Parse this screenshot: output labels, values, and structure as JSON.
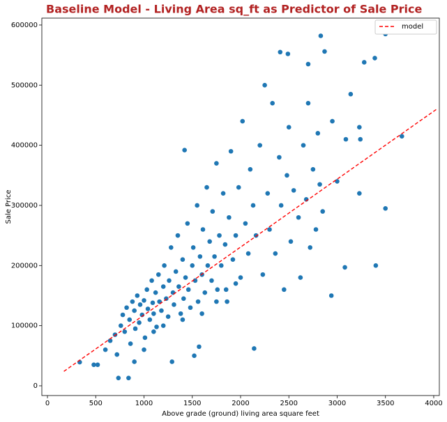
{
  "chart_data": {
    "type": "scatter",
    "title": "Baseline Model - Living Area sq_ft as Predictor of Sale Price",
    "x_label": "Above grade (ground) living area square feet",
    "y_label": "Sale Price",
    "color": "#1f77b4",
    "x": [
      600,
      650,
      700,
      720,
      760,
      780,
      800,
      820,
      850,
      860,
      880,
      900,
      910,
      930,
      950,
      960,
      980,
      1000,
      1010,
      1030,
      1040,
      1060,
      1080,
      1090,
      1100,
      1120,
      1130,
      1150,
      1160,
      1180,
      1200,
      1210,
      1230,
      1250,
      1260,
      1280,
      1300,
      1310,
      1330,
      1350,
      1360,
      1380,
      1400,
      1410,
      1430,
      1450,
      1460,
      1480,
      1500,
      1510,
      1530,
      1550,
      1560,
      1580,
      1600,
      1610,
      1630,
      1650,
      1660,
      1680,
      1700,
      1710,
      1730,
      1750,
      1760,
      1780,
      1800,
      1820,
      1840,
      1860,
      1880,
      1900,
      1920,
      1950,
      1980,
      2000,
      2020,
      2050,
      2080,
      2100,
      2130,
      2160,
      2200,
      2230,
      2250,
      2280,
      2300,
      2330,
      2360,
      2400,
      2420,
      2450,
      2480,
      2500,
      2520,
      2550,
      2600,
      2620,
      2650,
      2680,
      2700,
      2720,
      2750,
      2780,
      2800,
      2820,
      2850,
      1000,
      1100,
      900,
      1290,
      1520,
      1570,
      2140,
      1200,
      1400,
      1600,
      1750,
      1850,
      1950,
      334,
      480,
      520,
      735,
      840,
      1420,
      2830,
      2870,
      2410,
      2490,
      2700,
      3500,
      3390,
      3280,
      3140,
      3670,
      3500,
      3400,
      3080,
      2940,
      3230,
      3230,
      3240,
      2950,
      3090,
      3000
    ],
    "y": [
      60000,
      75000,
      85000,
      52000,
      100000,
      118000,
      90000,
      130000,
      110000,
      70000,
      140000,
      125000,
      95000,
      150000,
      105000,
      135000,
      118000,
      142000,
      80000,
      160000,
      128000,
      110000,
      175000,
      138000,
      120000,
      155000,
      98000,
      185000,
      140000,
      125000,
      165000,
      200000,
      145000,
      115000,
      175000,
      230000,
      155000,
      135000,
      190000,
      250000,
      165000,
      120000,
      210000,
      145000,
      180000,
      270000,
      160000,
      130000,
      200000,
      230000,
      175000,
      300000,
      140000,
      215000,
      185000,
      260000,
      155000,
      330000,
      200000,
      240000,
      175000,
      290000,
      215000,
      370000,
      160000,
      250000,
      200000,
      320000,
      235000,
      140000,
      280000,
      390000,
      210000,
      250000,
      330000,
      180000,
      440000,
      270000,
      220000,
      360000,
      300000,
      250000,
      400000,
      185000,
      500000,
      320000,
      260000,
      470000,
      220000,
      380000,
      300000,
      160000,
      350000,
      430000,
      240000,
      325000,
      280000,
      180000,
      400000,
      310000,
      470000,
      230000,
      360000,
      260000,
      420000,
      335000,
      290000,
      60000,
      90000,
      40000,
      40000,
      50000,
      65000,
      62000,
      100000,
      110000,
      120000,
      140000,
      160000,
      170000,
      39300,
      35000,
      35000,
      13000,
      13000,
      392000,
      582000,
      556000,
      555000,
      552000,
      535000,
      585000,
      545000,
      538000,
      485000,
      415000,
      295000,
      200000,
      197000,
      150000,
      320000,
      430000,
      410000,
      440000,
      410000,
      340000
    ],
    "lines": [
      {
        "name": "model",
        "color": "#ff0000",
        "dashed": true,
        "x": [
          170,
          4030
        ],
        "values": [
          24000,
          460000
        ]
      }
    ],
    "xlim": [
      -58,
      4058
    ],
    "ylim": [
      -16200,
      611500
    ],
    "xticks": [
      0,
      500,
      1000,
      1500,
      2000,
      2500,
      3000,
      3500,
      4000
    ],
    "yticks": [
      0,
      100000,
      200000,
      300000,
      400000,
      500000,
      600000
    ],
    "legend": "upper right"
  }
}
